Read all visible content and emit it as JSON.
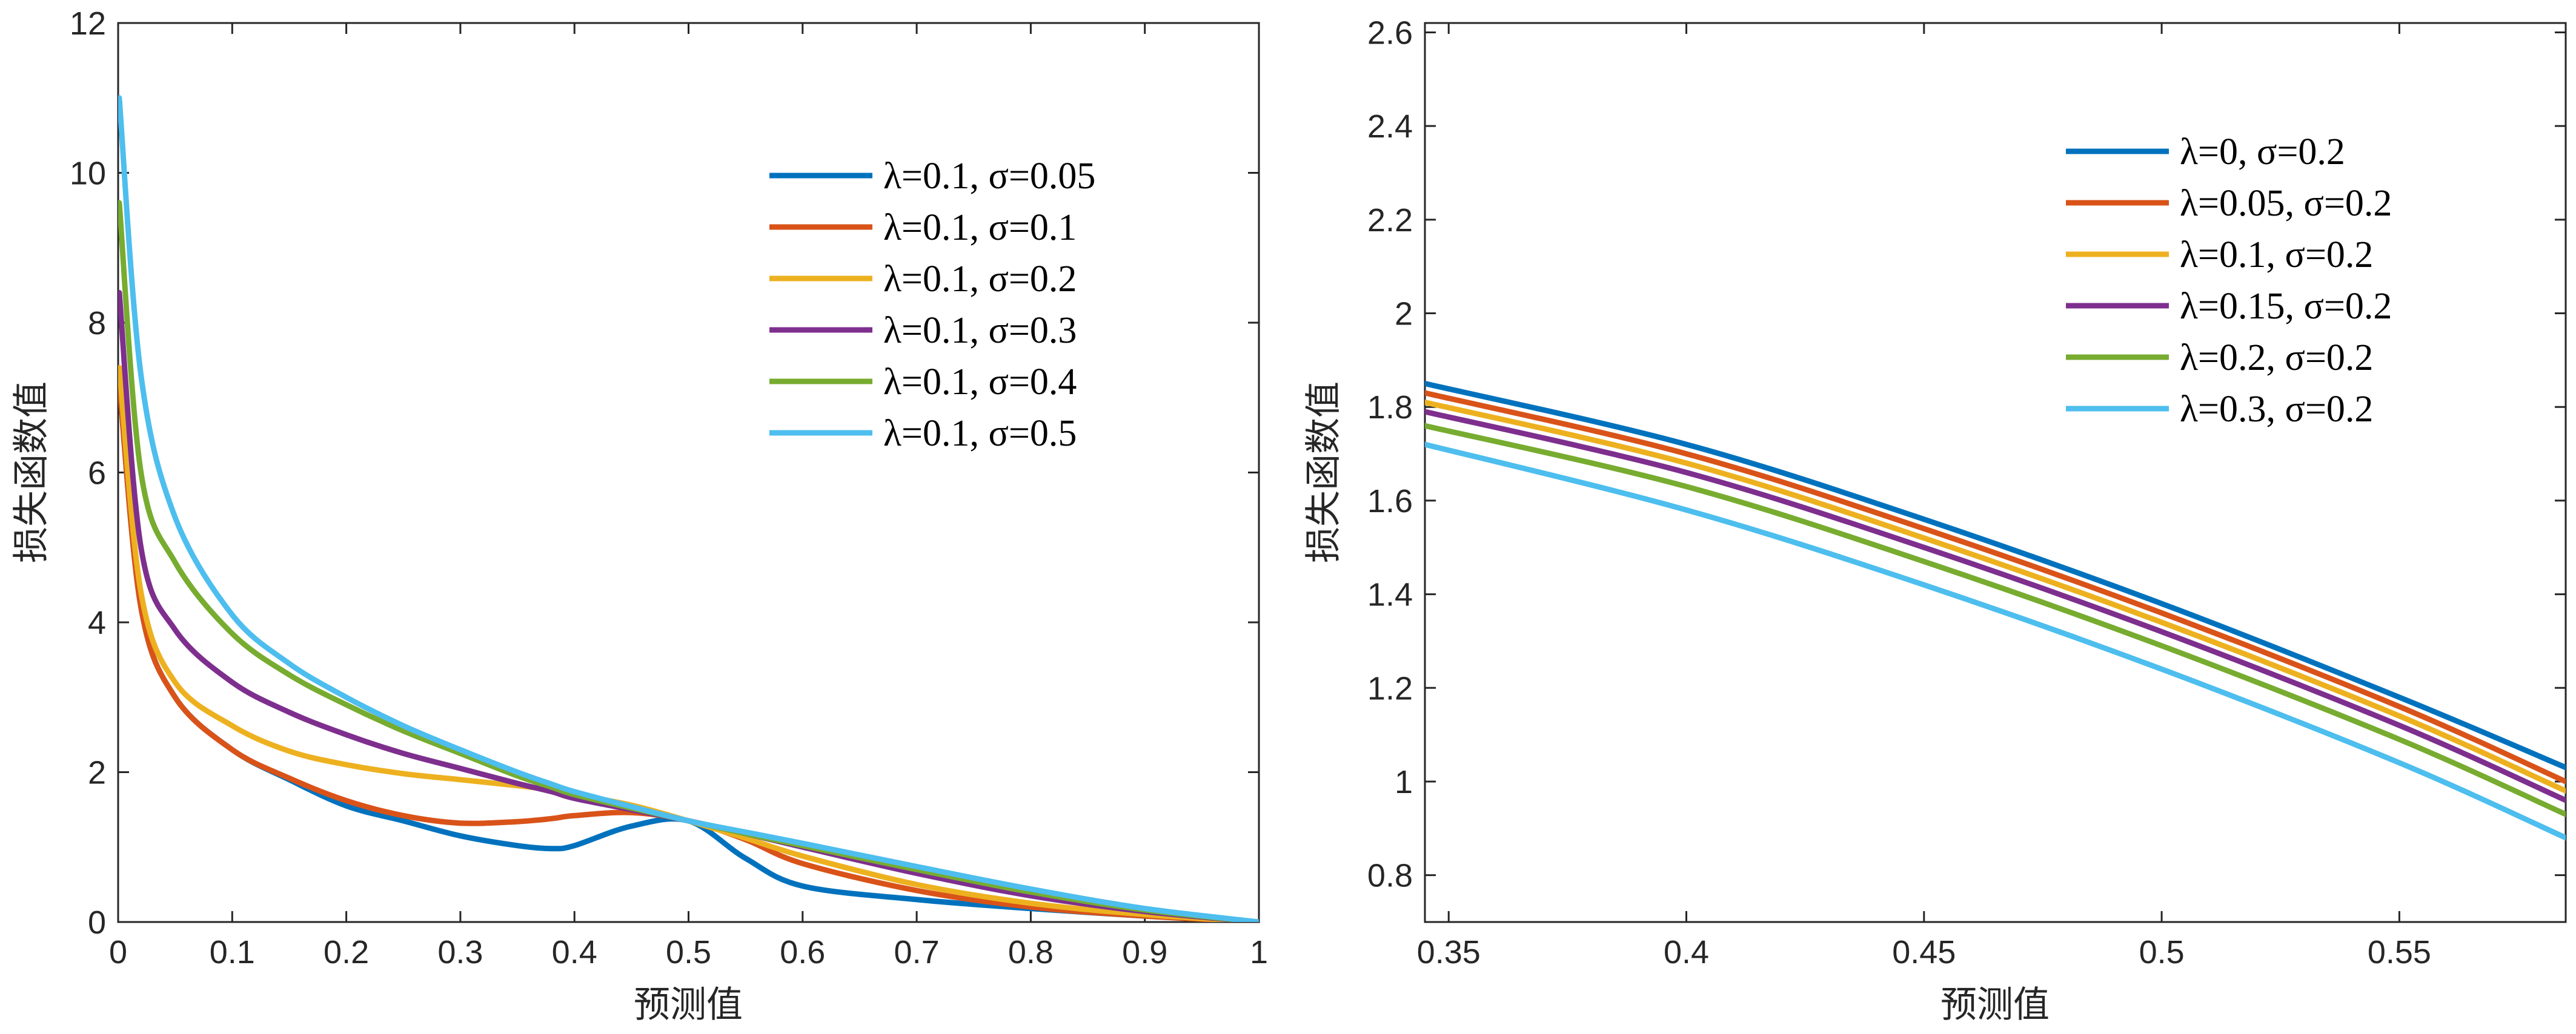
{
  "chart_data": [
    {
      "type": "line",
      "title": "",
      "xlabel": "预测值",
      "ylabel": "损失函数值",
      "xlim": [
        0,
        1
      ],
      "ylim": [
        0,
        12
      ],
      "xticks": [
        0,
        0.1,
        0.2,
        0.3,
        0.4,
        0.5,
        0.6,
        0.7,
        0.8,
        0.9,
        1
      ],
      "xtick_labels": [
        "0",
        "0.1",
        "0.2",
        "0.3",
        "0.4",
        "0.5",
        "0.6",
        "0.7",
        "0.8",
        "0.9",
        "1"
      ],
      "yticks": [
        0,
        2,
        4,
        6,
        8,
        10,
        12
      ],
      "ytick_labels": [
        "0",
        "2",
        "4",
        "6",
        "8",
        "10",
        "12"
      ],
      "grid": false,
      "legend_position": "top-right",
      "x": [
        0.001,
        0.02,
        0.05,
        0.1,
        0.15,
        0.2,
        0.25,
        0.3,
        0.35,
        0.38,
        0.4,
        0.45,
        0.5,
        0.55,
        0.6,
        0.7,
        0.8,
        0.9,
        1
      ],
      "series": [
        {
          "name": "λ=0.1, σ=0.05",
          "color": "#0072BD",
          "values": [
            7.2,
            4.2,
            3.0,
            2.3,
            1.9,
            1.55,
            1.35,
            1.15,
            1.02,
            0.98,
            1.02,
            1.28,
            1.35,
            0.85,
            0.48,
            0.3,
            0.18,
            0.08,
            0
          ]
        },
        {
          "name": "λ=0.1, σ=0.1",
          "color": "#D95319",
          "values": [
            7.2,
            4.2,
            3.0,
            2.3,
            1.92,
            1.62,
            1.42,
            1.32,
            1.34,
            1.38,
            1.42,
            1.46,
            1.35,
            1.1,
            0.78,
            0.42,
            0.2,
            0.08,
            0
          ]
        },
        {
          "name": "λ=0.1, σ=0.2",
          "color": "#EDB120",
          "values": [
            7.4,
            4.4,
            3.2,
            2.62,
            2.28,
            2.1,
            1.98,
            1.9,
            1.82,
            1.76,
            1.7,
            1.56,
            1.35,
            1.12,
            0.88,
            0.5,
            0.25,
            0.1,
            0
          ]
        },
        {
          "name": "λ=0.1, σ=0.3",
          "color": "#7E2F8E",
          "values": [
            8.4,
            5.0,
            3.9,
            3.2,
            2.8,
            2.5,
            2.25,
            2.05,
            1.85,
            1.74,
            1.65,
            1.5,
            1.35,
            1.18,
            1.0,
            0.65,
            0.35,
            0.14,
            0
          ]
        },
        {
          "name": "λ=0.1, σ=0.4",
          "color": "#77AC30",
          "values": [
            9.6,
            6.0,
            4.8,
            3.85,
            3.3,
            2.9,
            2.55,
            2.25,
            1.95,
            1.8,
            1.7,
            1.52,
            1.35,
            1.18,
            1.02,
            0.7,
            0.4,
            0.16,
            0
          ]
        },
        {
          "name": "λ=0.1, σ=0.5",
          "color": "#4DBEEE",
          "values": [
            11.0,
            7.3,
            5.4,
            4.1,
            3.45,
            3.0,
            2.62,
            2.3,
            2.0,
            1.84,
            1.74,
            1.54,
            1.35,
            1.2,
            1.05,
            0.74,
            0.44,
            0.18,
            0
          ]
        }
      ]
    },
    {
      "type": "line",
      "title": "",
      "xlabel": "预测值",
      "ylabel": "损失函数值",
      "xlim": [
        0.345,
        0.585
      ],
      "ylim": [
        0.7,
        2.62
      ],
      "xticks": [
        0.35,
        0.4,
        0.45,
        0.5,
        0.55
      ],
      "xtick_labels": [
        "0.35",
        "0.4",
        "0.45",
        "0.5",
        "0.55"
      ],
      "yticks": [
        0.8,
        1,
        1.2,
        1.4,
        1.6,
        1.8,
        2,
        2.2,
        2.4,
        2.6
      ],
      "ytick_labels": [
        "0.8",
        "1",
        "1.2",
        "1.4",
        "1.6",
        "1.8",
        "2",
        "2.2",
        "2.4",
        "2.6"
      ],
      "grid": false,
      "legend_position": "top-right",
      "x": [
        0.345,
        0.4,
        0.45,
        0.5,
        0.55,
        0.585
      ],
      "series": [
        {
          "name": "λ=0, σ=0.2",
          "color": "#0072BD",
          "values": [
            1.85,
            1.72,
            1.56,
            1.38,
            1.18,
            1.03
          ]
        },
        {
          "name": "λ=0.05, σ=0.2",
          "color": "#D95319",
          "values": [
            1.83,
            1.7,
            1.54,
            1.36,
            1.16,
            1.0
          ]
        },
        {
          "name": "λ=0.1, σ=0.2",
          "color": "#EDB120",
          "values": [
            1.81,
            1.68,
            1.52,
            1.34,
            1.14,
            0.98
          ]
        },
        {
          "name": "λ=0.15, σ=0.2",
          "color": "#7E2F8E",
          "values": [
            1.79,
            1.66,
            1.5,
            1.32,
            1.12,
            0.96
          ]
        },
        {
          "name": "λ=0.2, σ=0.2",
          "color": "#77AC30",
          "values": [
            1.76,
            1.63,
            1.47,
            1.29,
            1.09,
            0.93
          ]
        },
        {
          "name": "λ=0.3, σ=0.2",
          "color": "#4DBEEE",
          "values": [
            1.72,
            1.58,
            1.42,
            1.24,
            1.04,
            0.88
          ]
        }
      ]
    }
  ]
}
